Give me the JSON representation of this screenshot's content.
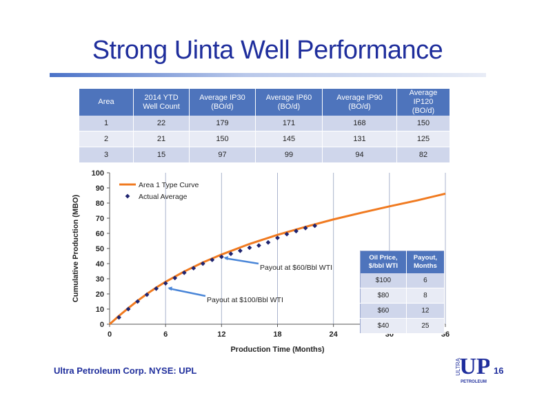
{
  "slide": {
    "title": "Strong Uinta Well Performance",
    "footer": "Ultra Petroleum Corp. NYSE: UPL",
    "page_number": "16"
  },
  "well_table": {
    "headers": [
      "Area",
      "2014 YTD\nWell Count",
      "Average IP30\n(BO/d)",
      "Average IP60\n(BO/d)",
      "Average IP90\n(BO/d)",
      "Average IP120\n(BO/d)"
    ],
    "rows": [
      [
        "1",
        "22",
        "179",
        "171",
        "168",
        "150"
      ],
      [
        "2",
        "21",
        "150",
        "145",
        "131",
        "125"
      ],
      [
        "3",
        "15",
        "97",
        "99",
        "94",
        "82"
      ]
    ]
  },
  "payout_table": {
    "headers": [
      "Oil Price,\n$/bbl WTI",
      "Payout,\nMonths"
    ],
    "rows": [
      [
        "$100",
        "6"
      ],
      [
        "$80",
        "8"
      ],
      [
        "$60",
        "12"
      ],
      [
        "$40",
        "25"
      ]
    ]
  },
  "logo": {
    "side_text": "ULTRA",
    "main_text": "UP",
    "bottom_text": "PETROLEUM"
  },
  "chart_data": {
    "type": "line",
    "xlabel": "Production Time (Months)",
    "ylabel": "Cumulative Production (MBO)",
    "xlim": [
      0,
      36
    ],
    "ylim": [
      0,
      100
    ],
    "xticks": [
      0,
      6,
      12,
      18,
      24,
      30,
      36
    ],
    "yticks": [
      0,
      10,
      20,
      30,
      40,
      50,
      60,
      70,
      80,
      90,
      100
    ],
    "grid": "vertical",
    "legend_position": "top-left",
    "series": [
      {
        "name": "Area 1 Type Curve",
        "kind": "line",
        "color": "#f07a20",
        "x": [
          0,
          1,
          2,
          3,
          4,
          5,
          6,
          8,
          10,
          12,
          15,
          18,
          21,
          24,
          27,
          30,
          33,
          36
        ],
        "y": [
          0,
          5.5,
          10.6,
          15.5,
          20,
          24.2,
          28,
          34.8,
          40.8,
          46,
          53,
          59,
          64.3,
          69.2,
          73.6,
          77.8,
          81.8,
          86.2
        ]
      },
      {
        "name": "Actual Average",
        "kind": "scatter",
        "color": "#1f2470",
        "x": [
          1,
          2,
          3,
          4,
          5,
          6,
          7,
          8,
          9,
          10,
          11,
          12,
          13,
          14,
          15,
          16,
          17,
          18,
          19,
          20,
          21,
          22
        ],
        "y": [
          4.5,
          10,
          15,
          19.5,
          23.5,
          27,
          30.5,
          34,
          37,
          40,
          42.5,
          44.5,
          46.5,
          48.5,
          50.5,
          52,
          54,
          57,
          59.5,
          61.5,
          63.5,
          65
        ]
      }
    ],
    "annotations": [
      {
        "text": "Payout at $60/Bbl WTI",
        "x": 12,
        "y": 44.5
      },
      {
        "text": "Payout at $100/Bbl WTI",
        "x": 6,
        "y": 24.5
      }
    ]
  }
}
